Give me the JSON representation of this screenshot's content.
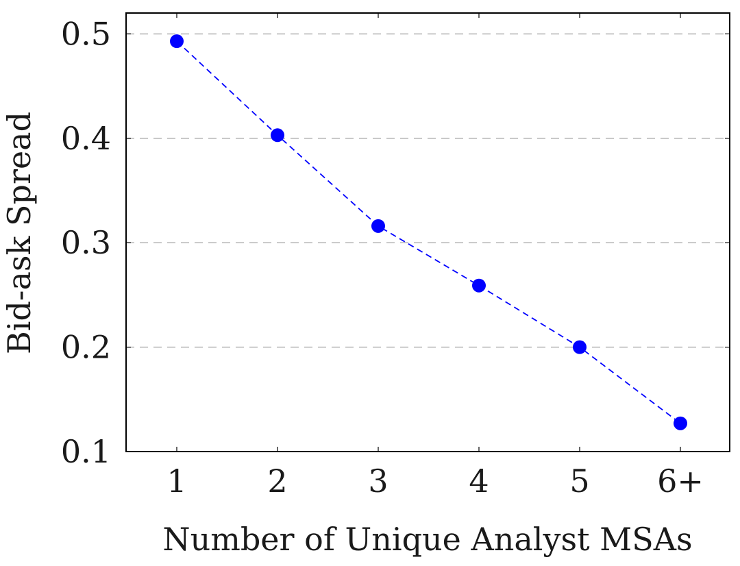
{
  "chart_data": {
    "type": "line",
    "title": "",
    "xlabel": "Number of Unique Analyst MSAs",
    "ylabel": "Bid-ask Spread",
    "categories": [
      "1",
      "2",
      "3",
      "4",
      "5",
      "6+"
    ],
    "series": [
      {
        "values": [
          0.493,
          0.403,
          0.316,
          0.259,
          0.2,
          0.127
        ]
      }
    ],
    "ylim": [
      0.1,
      0.52
    ],
    "yticks": [
      "0.1",
      "0.2",
      "0.3",
      "0.4",
      "0.5"
    ],
    "ytick_values": [
      0.1,
      0.2,
      0.3,
      0.4,
      0.5
    ],
    "grid": "horizontal dashed",
    "series_color": "#0000ff",
    "grid_color": "#b3b3b3"
  }
}
